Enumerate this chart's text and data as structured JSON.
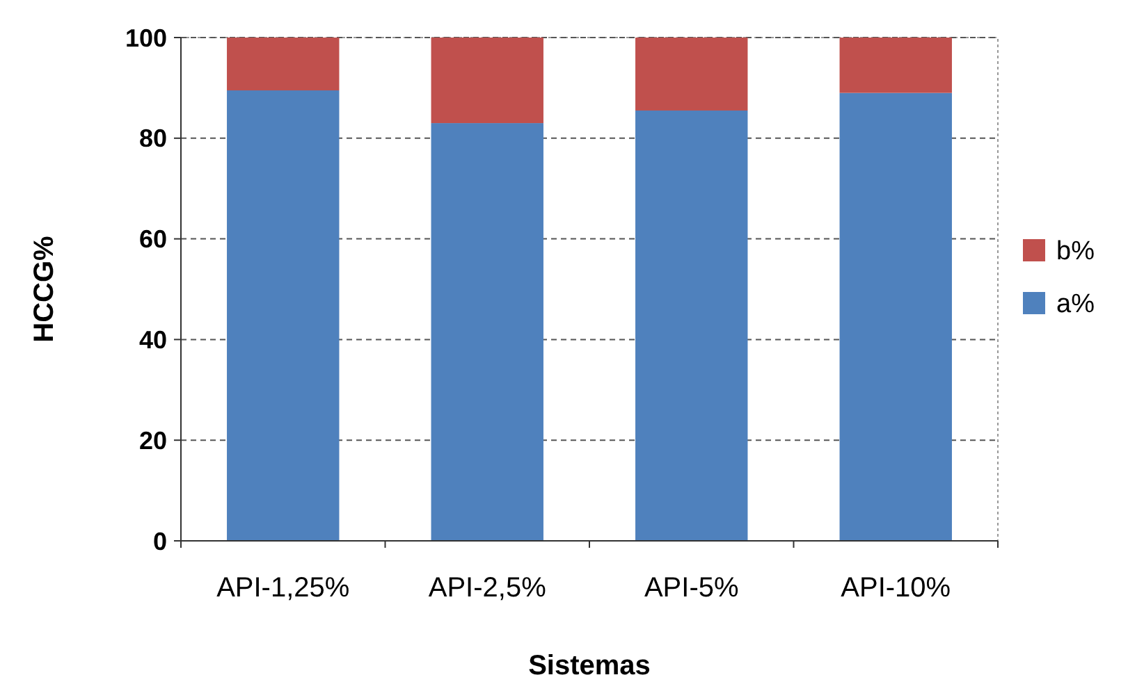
{
  "chart_data": {
    "type": "bar",
    "stacked": true,
    "xlabel": "Sistemas",
    "ylabel": "HCCG%",
    "categories": [
      "API-1,25%",
      "API-2,5%",
      "API-5%",
      "API-10%"
    ],
    "series": [
      {
        "name": "a%",
        "color": "#4f81bd",
        "values": [
          89.5,
          83,
          85.5,
          89
        ]
      },
      {
        "name": "b%",
        "color": "#c0504d",
        "values": [
          10.5,
          17,
          14.5,
          11
        ]
      }
    ],
    "ylim": [
      0,
      100
    ],
    "yticks": [
      0,
      20,
      40,
      60,
      80,
      100
    ],
    "grid": "y",
    "legend": "right"
  }
}
